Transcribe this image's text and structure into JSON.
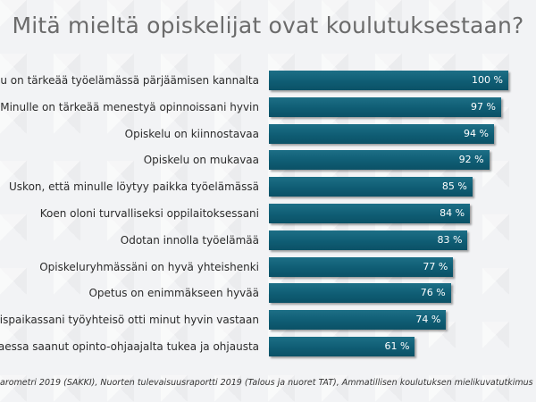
{
  "title": "Mitä mieltä opiskelijat ovat koulutuksestaan?",
  "source": "arometri 2019 (SAKKI),  Nuorten tulevaisuusraportti 2019 (Talous ja nuoret TAT),  Ammatillisen koulutuksen mielikuvatutkimus",
  "chart_data": {
    "type": "bar",
    "orientation": "horizontal",
    "title": "Mitä mieltä opiskelijat ovat koulutuksestaan?",
    "unit": "%",
    "xlim": [
      0,
      100
    ],
    "categories": [
      "skelu on tärkeää työelämässä pärjäämisen kannalta",
      "Minulle on tärkeää menestyä opinnoissani hyvin",
      "Opiskelu on kiinnostavaa",
      "Opiskelu on mukavaa",
      "Uskon, että minulle löytyy paikka työelämässä",
      "Koen oloni turvalliseksi oppilaitoksessani",
      "Odotan innolla työelämää",
      "Opiskeluryhmässäni on hyvä yhteishenki",
      "Opetus on enimmäkseen hyvää",
      "oimispaikassani työyhteisö otti minut hyvin vastaan",
      "vittaessa saanut opinto-ohjaajalta tukea ja ohjausta"
    ],
    "values": [
      100,
      97,
      94,
      92,
      85,
      84,
      83,
      77,
      76,
      74,
      61
    ],
    "value_labels": [
      "100 %",
      "97 %",
      "94 %",
      "92 %",
      "85 %",
      "84 %",
      "83 %",
      "77 %",
      "76 %",
      "74 %",
      "61 %"
    ],
    "bar_color": "#0f5d74",
    "grid": false
  }
}
